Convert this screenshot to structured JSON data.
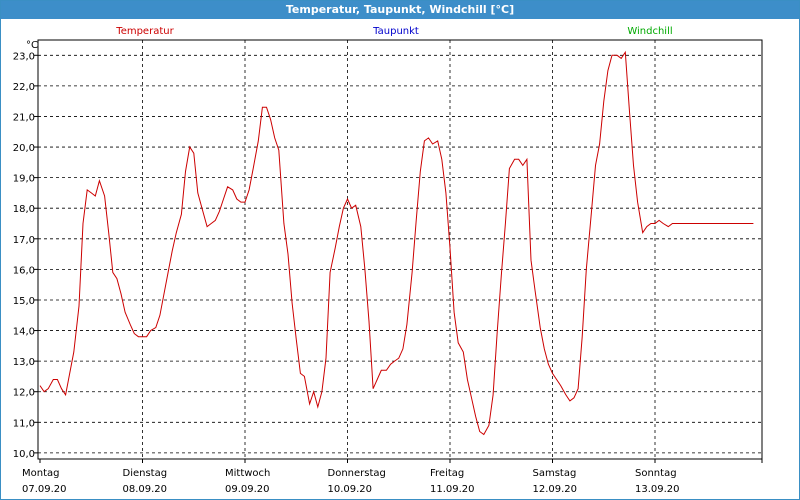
{
  "window": {
    "title": "Temperatur, Taupunkt, Windchill [°C]"
  },
  "chart_data": {
    "type": "line",
    "unit_label": "°C",
    "ylim": [
      9.8,
      23.5
    ],
    "y_ticks": [
      "10,0",
      "11,0",
      "12,0",
      "13,0",
      "14,0",
      "15,0",
      "16,0",
      "17,0",
      "18,0",
      "19,0",
      "20,0",
      "21,0",
      "22,0",
      "23,0"
    ],
    "x_ticks": [
      {
        "day": "Montag",
        "date": "07.09.20"
      },
      {
        "day": "Dienstag",
        "date": "08.09.20"
      },
      {
        "day": "Mittwoch",
        "date": "09.09.20"
      },
      {
        "day": "Donnerstag",
        "date": "10.09.20"
      },
      {
        "day": "Freitag",
        "date": "11.09.20"
      },
      {
        "day": "Samstag",
        "date": "12.09.20"
      },
      {
        "day": "Sonntag",
        "date": "13.09.20"
      }
    ],
    "grid": true,
    "legend": [
      {
        "name": "Temperatur",
        "color": "#cc0000"
      },
      {
        "name": "Taupunkt",
        "color": "#0000cc"
      },
      {
        "name": "Windchill",
        "color": "#00aa00"
      }
    ],
    "series": [
      {
        "name": "Temperatur",
        "color": "#cc0000",
        "x_days": [
          0.0,
          0.04,
          0.08,
          0.13,
          0.17,
          0.21,
          0.25,
          0.29,
          0.33,
          0.38,
          0.42,
          0.46,
          0.5,
          0.54,
          0.58,
          0.63,
          0.67,
          0.71,
          0.75,
          0.79,
          0.83,
          0.88,
          0.92,
          0.96,
          1.0,
          1.04,
          1.08,
          1.13,
          1.17,
          1.21,
          1.25,
          1.29,
          1.33,
          1.38,
          1.42,
          1.46,
          1.5,
          1.54,
          1.58,
          1.63,
          1.67,
          1.71,
          1.75,
          1.79,
          1.83,
          1.88,
          1.92,
          1.96,
          2.0,
          2.04,
          2.08,
          2.13,
          2.17,
          2.21,
          2.25,
          2.29,
          2.33,
          2.38,
          2.42,
          2.46,
          2.5,
          2.54,
          2.58,
          2.63,
          2.67,
          2.71,
          2.75,
          2.79,
          2.83,
          2.88,
          2.92,
          2.96,
          3.0,
          3.04,
          3.08,
          3.13,
          3.17,
          3.21,
          3.25,
          3.29,
          3.33,
          3.38,
          3.42,
          3.46,
          3.5,
          3.54,
          3.58,
          3.63,
          3.67,
          3.71,
          3.75,
          3.79,
          3.83,
          3.88,
          3.92,
          3.96,
          4.0,
          4.04,
          4.08,
          4.13,
          4.17,
          4.21,
          4.25,
          4.29,
          4.33,
          4.38,
          4.42,
          4.46,
          4.5,
          4.54,
          4.58,
          4.63,
          4.67,
          4.71,
          4.75,
          4.79,
          4.83,
          4.88,
          4.92,
          4.96,
          5.0,
          5.04,
          5.08,
          5.13,
          5.17,
          5.21,
          5.25,
          5.29,
          5.33,
          5.38,
          5.42,
          5.46,
          5.5,
          5.54,
          5.58,
          5.63,
          5.67,
          5.71,
          5.75,
          5.79,
          5.83,
          5.88,
          5.92,
          5.96,
          6.0,
          6.04,
          6.08,
          6.13,
          6.17,
          6.21,
          6.25,
          6.29,
          6.33,
          6.38,
          6.42,
          6.46,
          6.5,
          6.54,
          6.58,
          6.63,
          6.67,
          6.71,
          6.75,
          6.79,
          6.83,
          6.88,
          6.92,
          6.96
        ],
        "values": [
          12.2,
          12.0,
          12.1,
          12.4,
          12.4,
          12.1,
          11.9,
          12.6,
          13.3,
          14.8,
          17.5,
          18.6,
          18.5,
          18.4,
          18.9,
          18.4,
          17.2,
          15.9,
          15.7,
          15.2,
          14.6,
          14.2,
          13.9,
          13.8,
          13.8,
          13.8,
          14.0,
          14.1,
          14.5,
          15.2,
          15.9,
          16.6,
          17.2,
          17.8,
          19.2,
          20.0,
          19.8,
          18.5,
          18.0,
          17.4,
          17.5,
          17.6,
          17.9,
          18.3,
          18.7,
          18.6,
          18.3,
          18.2,
          18.2,
          18.6,
          19.3,
          20.2,
          21.3,
          21.3,
          20.9,
          20.3,
          19.9,
          17.5,
          16.5,
          14.9,
          13.7,
          12.6,
          12.5,
          11.6,
          12.0,
          11.5,
          12.0,
          13.1,
          15.9,
          16.7,
          17.4,
          18.0,
          18.3,
          18.0,
          18.1,
          17.4,
          16.0,
          14.3,
          12.1,
          12.4,
          12.7,
          12.7,
          12.9,
          13.0,
          13.1,
          13.4,
          14.2,
          15.9,
          17.6,
          19.2,
          20.2,
          20.3,
          20.1,
          20.2,
          19.6,
          18.5,
          16.7,
          14.6,
          13.6,
          13.3,
          12.4,
          11.8,
          11.2,
          10.7,
          10.6,
          10.9,
          11.9,
          13.9,
          15.8,
          17.5,
          19.3,
          19.6,
          19.6,
          19.4,
          19.6,
          16.3,
          15.3,
          14.1,
          13.4,
          12.9,
          12.6,
          12.4,
          12.2,
          11.9,
          11.7,
          11.8,
          12.1,
          13.8,
          16.0,
          17.9,
          19.4,
          20.1,
          21.5,
          22.5,
          23.0,
          23.0,
          22.9,
          23.1,
          21.2,
          19.4,
          18.2,
          17.2,
          17.4,
          17.5,
          17.5,
          17.6,
          17.5,
          17.4,
          17.5,
          17.5,
          17.5,
          17.5,
          17.5,
          17.5,
          17.5,
          17.5,
          17.5,
          17.5,
          17.5,
          17.5,
          17.5,
          17.5,
          17.5,
          17.5,
          17.5,
          17.5,
          17.5,
          17.5
        ]
      }
    ]
  }
}
